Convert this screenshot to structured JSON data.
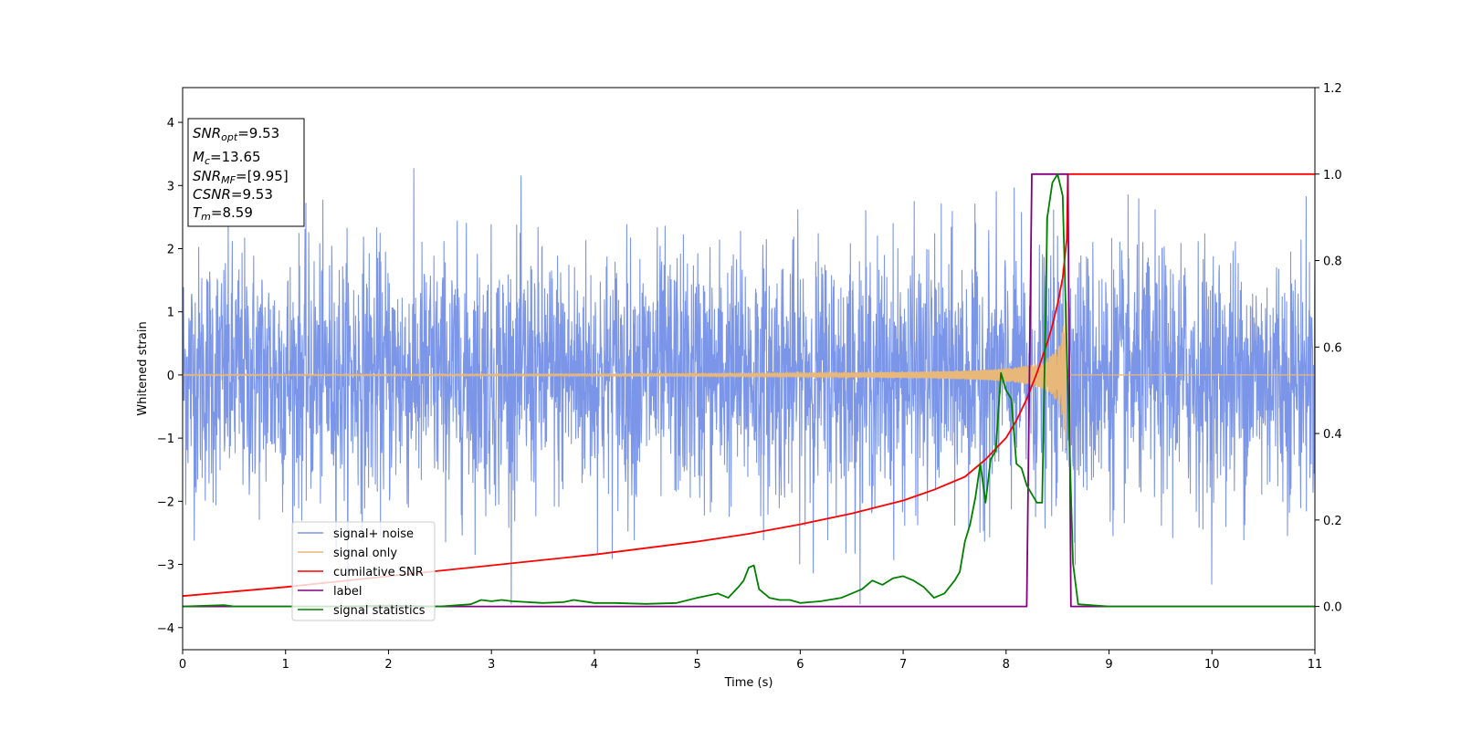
{
  "chart_data": {
    "type": "line",
    "xlabel": "Time (s)",
    "ylabel": "Whitened strain",
    "xlim": [
      0,
      11
    ],
    "ylim_left": [
      -4.35,
      4.55
    ],
    "ylim_right": [
      -0.1,
      1.2
    ],
    "x_ticks": [
      0,
      1,
      2,
      3,
      4,
      5,
      6,
      7,
      8,
      9,
      10,
      11
    ],
    "y_ticks_left": [
      -4,
      -3,
      -2,
      -1,
      0,
      1,
      2,
      3,
      4
    ],
    "y_ticks_right": [
      "0.0",
      "0.2",
      "0.4",
      "0.6",
      "0.8",
      "1.0",
      "1.2"
    ],
    "y_ticks_right_values": [
      0.0,
      0.2,
      0.4,
      0.6,
      0.8,
      1.0,
      1.2
    ],
    "annotation": {
      "line1_pre": "SNR",
      "line1_sub": "opt",
      "line1_post": "=9.53",
      "line2_pre": "M",
      "line2_sub": "c",
      "line2_post": "=13.65",
      "line3_pre": "SNR",
      "line3_sub": "MF",
      "line3_post": "=[9.95]",
      "line4_pre": "CSNR",
      "line4_post": "=9.53",
      "line5_pre": "T",
      "line5_sub": "m",
      "line5_post": "=8.59"
    },
    "legend": {
      "placement": "lower-left",
      "entries": [
        "signal+ noise",
        "signal only",
        "cumilative SNR",
        "label",
        "signal statistics"
      ]
    },
    "series": [
      {
        "name": "signal+ noise",
        "axis": "left",
        "color": "#7b96e8",
        "kind": "noise",
        "x_range": [
          0,
          11
        ],
        "std": 1.0,
        "max": 4.18,
        "min": -3.63
      },
      {
        "name": "signal only",
        "axis": "left",
        "color": "#e8b87a",
        "kind": "chirp",
        "x_range": [
          0,
          11
        ],
        "merger_time": 8.59,
        "peak_amplitude": 1.55
      },
      {
        "name": "cumilative SNR",
        "axis": "right",
        "color": "#ff0000",
        "x": [
          0,
          1,
          2,
          3,
          4,
          5,
          5.5,
          6,
          6.5,
          7,
          7.3,
          7.6,
          7.8,
          8.0,
          8.1,
          8.2,
          8.3,
          8.4,
          8.45,
          8.5,
          8.55,
          8.59,
          8.6,
          9,
          10,
          11
        ],
        "y": [
          0.024,
          0.045,
          0.07,
          0.095,
          0.12,
          0.15,
          0.168,
          0.19,
          0.215,
          0.245,
          0.27,
          0.3,
          0.34,
          0.39,
          0.43,
          0.48,
          0.54,
          0.61,
          0.65,
          0.7,
          0.76,
          0.85,
          1.0,
          1.0,
          1.0,
          1.0
        ]
      },
      {
        "name": "label",
        "axis": "right",
        "color": "#800080",
        "x": [
          0,
          8.2,
          8.25,
          8.6,
          8.63,
          11
        ],
        "y": [
          0.0,
          0.0,
          1.0,
          1.0,
          0.0,
          0.0
        ]
      },
      {
        "name": "signal statistics",
        "axis": "right",
        "color": "#008000",
        "x": [
          0,
          0.4,
          0.5,
          1,
          1.5,
          2,
          2.5,
          2.8,
          2.9,
          3.0,
          3.1,
          3.2,
          3.5,
          3.7,
          3.8,
          4.0,
          4.2,
          4.5,
          4.8,
          5.0,
          5.2,
          5.3,
          5.4,
          5.45,
          5.5,
          5.55,
          5.6,
          5.7,
          5.8,
          5.9,
          6.0,
          6.2,
          6.4,
          6.6,
          6.7,
          6.8,
          6.9,
          7.0,
          7.1,
          7.2,
          7.3,
          7.4,
          7.5,
          7.55,
          7.6,
          7.65,
          7.7,
          7.75,
          7.8,
          7.85,
          7.9,
          7.95,
          8.0,
          8.05,
          8.1,
          8.15,
          8.2,
          8.3,
          8.35,
          8.4,
          8.45,
          8.5,
          8.55,
          8.6,
          8.65,
          8.7,
          9.0,
          10,
          11
        ],
        "y": [
          0.0,
          0.003,
          0.0,
          0.0,
          0.0,
          0.002,
          0.0,
          0.005,
          0.015,
          0.012,
          0.015,
          0.012,
          0.008,
          0.01,
          0.015,
          0.008,
          0.008,
          0.006,
          0.008,
          0.02,
          0.03,
          0.02,
          0.045,
          0.06,
          0.09,
          0.095,
          0.04,
          0.02,
          0.015,
          0.015,
          0.008,
          0.012,
          0.02,
          0.04,
          0.06,
          0.05,
          0.065,
          0.07,
          0.06,
          0.045,
          0.02,
          0.03,
          0.06,
          0.08,
          0.15,
          0.19,
          0.25,
          0.33,
          0.24,
          0.34,
          0.36,
          0.54,
          0.5,
          0.48,
          0.33,
          0.32,
          0.28,
          0.24,
          0.24,
          0.9,
          0.98,
          1.0,
          0.95,
          0.5,
          0.1,
          0.005,
          0.0,
          0.0,
          0.0
        ]
      }
    ]
  }
}
